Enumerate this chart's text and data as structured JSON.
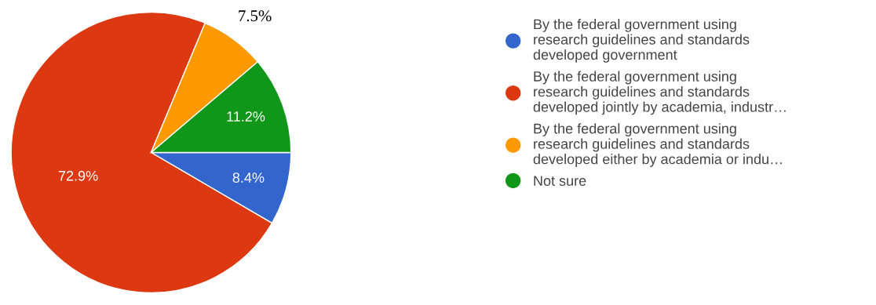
{
  "chart_data": {
    "type": "pie",
    "categories": [
      "By the federal government using\nresearch guidelines and standards\ndeveloped government",
      "By the federal government using\nresearch guidelines and standards\ndeveloped jointly by academia, industr…",
      "By the federal government using\nresearch guidelines and standards\ndeveloped either by academia or indu…",
      "Not sure"
    ],
    "values": [
      8.4,
      72.9,
      7.5,
      11.2
    ],
    "colors": [
      "#3366cc",
      "#dc3912",
      "#ff9900",
      "#109618"
    ],
    "value_labels": [
      "8.4%",
      "72.9%",
      "7.5%",
      "11.2%"
    ],
    "legend": "right"
  }
}
